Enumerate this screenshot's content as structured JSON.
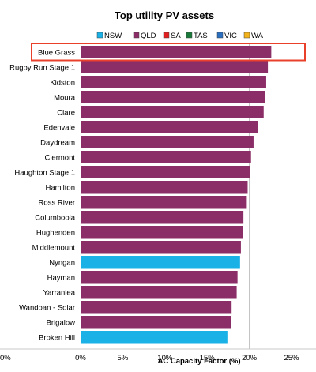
{
  "chart_data": {
    "type": "bar",
    "orientation": "horizontal",
    "title": "Top utility PV assets",
    "xlabel": "AC Capacity Factor (%)",
    "ylabel": "",
    "xlim": [
      0,
      0.25
    ],
    "x_ticks": [
      "0%",
      "5%",
      "10%",
      "15%",
      "20%",
      "25%"
    ],
    "left_cropped_tick": "0%",
    "gridlines": "vertical at 20%",
    "legend": {
      "placement": "top",
      "entries": [
        {
          "name": "NSW",
          "color": "#1ab1e6"
        },
        {
          "name": "QLD",
          "color": "#8b2d66"
        },
        {
          "name": "SA",
          "color": "#e02020"
        },
        {
          "name": "TAS",
          "color": "#1a7a3a"
        },
        {
          "name": "VIC",
          "color": "#2a6fc0"
        },
        {
          "name": "WA",
          "color": "#f2b21c"
        }
      ]
    },
    "highlight": {
      "category": "Blue Grass",
      "color": "#e8402a"
    },
    "categories": [
      "Blue Grass",
      "Rugby Run Stage 1",
      "Kidston",
      "Moura",
      "Clare",
      "Edenvale",
      "Daydream",
      "Clermont",
      "Haughton Stage 1",
      "Hamilton",
      "Ross River",
      "Columboola",
      "Hughenden",
      "Middlemount",
      "Nyngan",
      "Hayman",
      "Yarranlea",
      "Wandoan  - Solar",
      "Brigalow",
      "Broken Hill"
    ],
    "values": [
      0.226,
      0.222,
      0.22,
      0.219,
      0.217,
      0.21,
      0.205,
      0.202,
      0.201,
      0.198,
      0.197,
      0.193,
      0.192,
      0.19,
      0.189,
      0.186,
      0.185,
      0.179,
      0.178,
      0.174
    ],
    "states": [
      "QLD",
      "QLD",
      "QLD",
      "QLD",
      "QLD",
      "QLD",
      "QLD",
      "QLD",
      "QLD",
      "QLD",
      "QLD",
      "QLD",
      "QLD",
      "QLD",
      "NSW",
      "QLD",
      "QLD",
      "QLD",
      "QLD",
      "NSW"
    ]
  }
}
